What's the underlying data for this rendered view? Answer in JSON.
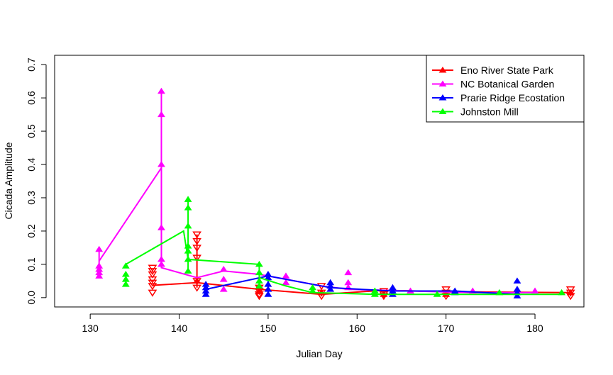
{
  "chart_data": {
    "type": "scatter",
    "xlabel": "Julian Day",
    "ylabel": "Cicada Amplitude",
    "xlim": [
      126,
      185.5
    ],
    "ylim": [
      -0.028,
      0.728
    ],
    "x_ticks": [
      130,
      140,
      150,
      160,
      170,
      180
    ],
    "y_ticks": [
      0.0,
      0.1,
      0.2,
      0.3,
      0.4,
      0.5,
      0.6,
      0.7
    ],
    "x_tick_labels": [
      "130",
      "140",
      "150",
      "160",
      "170",
      "180"
    ],
    "y_tick_labels": [
      "0.0",
      "0.1",
      "0.2",
      "0.3",
      "0.4",
      "0.5",
      "0.6",
      "0.7"
    ],
    "legend_position": "top-right",
    "series": [
      {
        "name": "Eno River State Park",
        "color": "#FF0000",
        "vertical_ranges": [
          {
            "x": 142,
            "ymin": 0.03,
            "ymax": 0.19
          }
        ],
        "mean_line": [
          [
            137,
            0.037
          ],
          [
            142,
            0.045
          ],
          [
            149,
            0.025
          ],
          [
            156,
            0.01
          ],
          [
            163,
            0.022
          ],
          [
            170,
            0.018
          ],
          [
            184,
            0.015
          ]
        ],
        "up_points": [
          [
            142,
            0.05
          ],
          [
            149,
            0.02
          ],
          [
            156,
            0.015
          ],
          [
            163,
            0.01
          ],
          [
            170,
            0.01
          ],
          [
            184,
            0.015
          ]
        ],
        "down_points": [
          [
            137,
            0.09
          ],
          [
            137,
            0.08
          ],
          [
            137,
            0.07
          ],
          [
            137,
            0.055
          ],
          [
            137,
            0.045
          ],
          [
            137,
            0.035
          ],
          [
            137,
            0.015
          ],
          [
            142,
            0.19
          ],
          [
            142,
            0.17
          ],
          [
            142,
            0.15
          ],
          [
            142,
            0.12
          ],
          [
            142,
            0.05
          ],
          [
            142,
            0.03
          ],
          [
            149,
            0.03
          ],
          [
            149,
            0.02
          ],
          [
            149,
            0.01
          ],
          [
            149,
            0.005
          ],
          [
            156,
            0.035
          ],
          [
            156,
            0.015
          ],
          [
            156,
            0.005
          ],
          [
            163,
            0.02
          ],
          [
            163,
            0.01
          ],
          [
            163,
            0.005
          ],
          [
            170,
            0.025
          ],
          [
            170,
            0.015
          ],
          [
            170,
            0.005
          ],
          [
            184,
            0.025
          ],
          [
            184,
            0.015
          ],
          [
            184,
            0.005
          ]
        ]
      },
      {
        "name": "NC Botanical Garden",
        "color": "#FF00FF",
        "vertical_ranges": [
          {
            "x": 131,
            "ymin": 0.06,
            "ymax": 0.145
          },
          {
            "x": 138,
            "ymin": 0.095,
            "ymax": 0.62
          }
        ],
        "mean_line": [
          [
            131,
            0.11
          ],
          [
            138,
            0.39
          ],
          [
            138,
            0.09
          ],
          [
            142,
            0.06
          ],
          [
            145,
            0.08
          ],
          [
            149,
            0.07
          ],
          [
            152,
            0.055
          ],
          [
            156,
            0.035
          ],
          [
            159,
            0.025
          ],
          [
            166,
            0.02
          ],
          [
            173,
            0.015
          ],
          [
            180,
            0.015
          ]
        ],
        "up_points": [
          [
            131,
            0.145
          ],
          [
            131,
            0.095
          ],
          [
            131,
            0.085
          ],
          [
            131,
            0.075
          ],
          [
            131,
            0.065
          ],
          [
            138,
            0.62
          ],
          [
            138,
            0.55
          ],
          [
            138,
            0.4
          ],
          [
            138,
            0.21
          ],
          [
            138,
            0.115
          ],
          [
            138,
            0.1
          ],
          [
            145,
            0.085
          ],
          [
            145,
            0.055
          ],
          [
            145,
            0.025
          ],
          [
            152,
            0.065
          ],
          [
            152,
            0.045
          ],
          [
            159,
            0.075
          ],
          [
            159,
            0.045
          ],
          [
            159,
            0.03
          ],
          [
            166,
            0.02
          ],
          [
            173,
            0.02
          ],
          [
            180,
            0.02
          ]
        ],
        "down_points": []
      },
      {
        "name": "Prarie Ridge Ecostation",
        "color": "#0000FF",
        "vertical_ranges": [
          {
            "x": 150,
            "ymin": 0.01,
            "ymax": 0.075
          }
        ],
        "mean_line": [
          [
            143,
            0.025
          ],
          [
            150,
            0.065
          ],
          [
            157,
            0.03
          ],
          [
            164,
            0.02
          ],
          [
            171,
            0.02
          ],
          [
            178,
            0.01
          ]
        ],
        "up_points": [
          [
            143,
            0.04
          ],
          [
            143,
            0.03
          ],
          [
            143,
            0.02
          ],
          [
            143,
            0.01
          ],
          [
            150,
            0.07
          ],
          [
            150,
            0.06
          ],
          [
            150,
            0.04
          ],
          [
            150,
            0.025
          ],
          [
            150,
            0.01
          ],
          [
            157,
            0.045
          ],
          [
            157,
            0.035
          ],
          [
            157,
            0.025
          ],
          [
            164,
            0.03
          ],
          [
            164,
            0.02
          ],
          [
            164,
            0.01
          ],
          [
            171,
            0.02
          ],
          [
            171,
            0.015
          ],
          [
            178,
            0.05
          ],
          [
            178,
            0.025
          ],
          [
            178,
            0.015
          ],
          [
            178,
            0.005
          ]
        ],
        "down_points": []
      },
      {
        "name": "Johnston Mill",
        "color": "#00FF00",
        "vertical_ranges": [
          {
            "x": 141,
            "ymin": 0.08,
            "ymax": 0.295
          }
        ],
        "mean_line": [
          [
            134,
            0.1
          ],
          [
            140.5,
            0.2
          ],
          [
            141,
            0.115
          ],
          [
            149,
            0.1
          ],
          [
            149,
            0.06
          ],
          [
            152,
            0.035
          ],
          [
            155,
            0.015
          ],
          [
            162,
            0.01
          ],
          [
            169,
            0.01
          ],
          [
            176,
            0.01
          ],
          [
            183,
            0.01
          ]
        ],
        "up_points": [
          [
            134,
            0.095
          ],
          [
            134,
            0.07
          ],
          [
            134,
            0.055
          ],
          [
            134,
            0.04
          ],
          [
            141,
            0.295
          ],
          [
            141,
            0.27
          ],
          [
            141,
            0.215
          ],
          [
            141,
            0.155
          ],
          [
            141,
            0.14
          ],
          [
            141,
            0.115
          ],
          [
            141,
            0.08
          ],
          [
            149,
            0.1
          ],
          [
            149,
            0.075
          ],
          [
            149,
            0.05
          ],
          [
            149,
            0.035
          ],
          [
            155,
            0.03
          ],
          [
            155,
            0.02
          ],
          [
            162,
            0.02
          ],
          [
            162,
            0.01
          ],
          [
            169,
            0.01
          ],
          [
            176,
            0.015
          ],
          [
            183,
            0.015
          ]
        ],
        "down_points": []
      }
    ]
  }
}
